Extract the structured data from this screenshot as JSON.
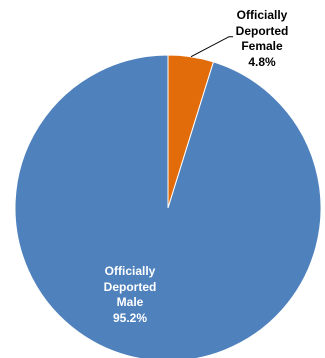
{
  "chart_data": {
    "type": "pie",
    "title": "",
    "slices": [
      {
        "label": "Officially Deported Male",
        "value": 95.2,
        "value_text": "95.2%",
        "color": "#4f81bd"
      },
      {
        "label": "Officially Deported Female",
        "value": 4.8,
        "value_text": "4.8%",
        "color": "#e36c0a"
      }
    ],
    "start_angle_deg": 0,
    "direction": "clockwise",
    "legend": "none"
  },
  "labels": {
    "female": "Officially\nDeported\nFemale\n4.8%",
    "male": "Officially\nDeported\nMale\n95.2%"
  },
  "colors": {
    "leader_line": "#000000",
    "slice_border": "#ffffff"
  }
}
